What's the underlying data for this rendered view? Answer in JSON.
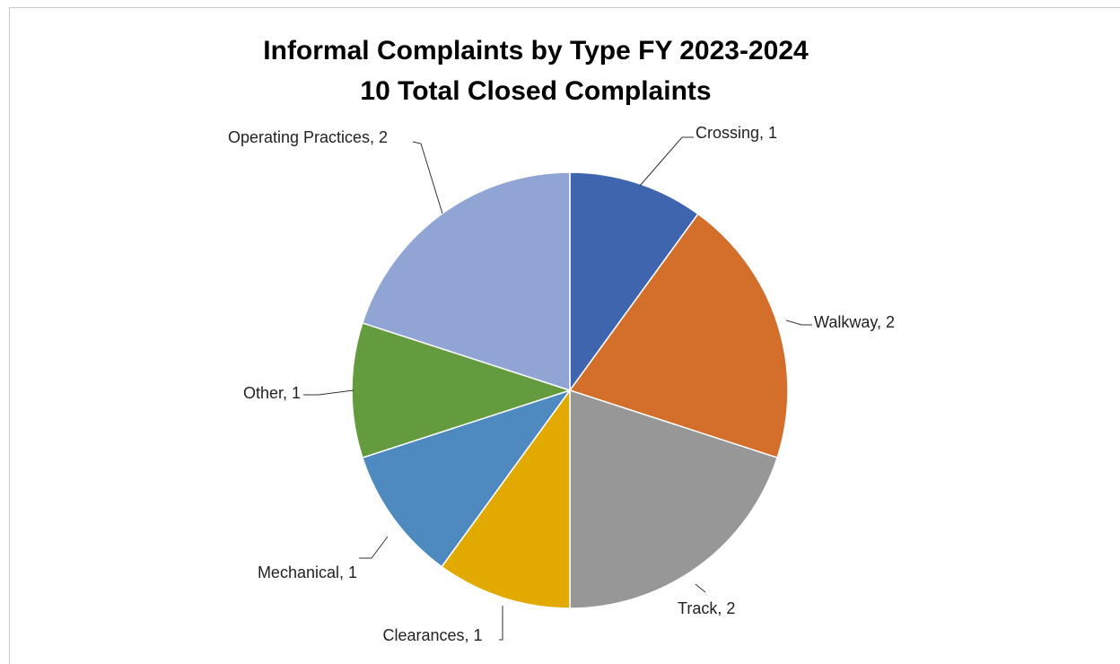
{
  "chart_data": {
    "type": "pie",
    "title": "Informal Complaints by Type FY 2023-2024",
    "subtitle": "10 Total Closed Complaints",
    "categories": [
      "Crossing",
      "Walkway",
      "Track",
      "Clearances",
      "Mechanical",
      "Other",
      "Operating Practices"
    ],
    "values": [
      1,
      2,
      2,
      1,
      1,
      1,
      2
    ],
    "value_labels": [
      "Crossing, 1",
      "Walkway, 2",
      "Track, 2",
      "Clearances, 1",
      "Mechanical, 1",
      "Other, 1",
      "Operating Practices, 2"
    ],
    "colors": [
      "#3e65ae",
      "#d46e2b",
      "#979797",
      "#e2a900",
      "#4e89bf",
      "#659b3f",
      "#91a5d4"
    ]
  }
}
